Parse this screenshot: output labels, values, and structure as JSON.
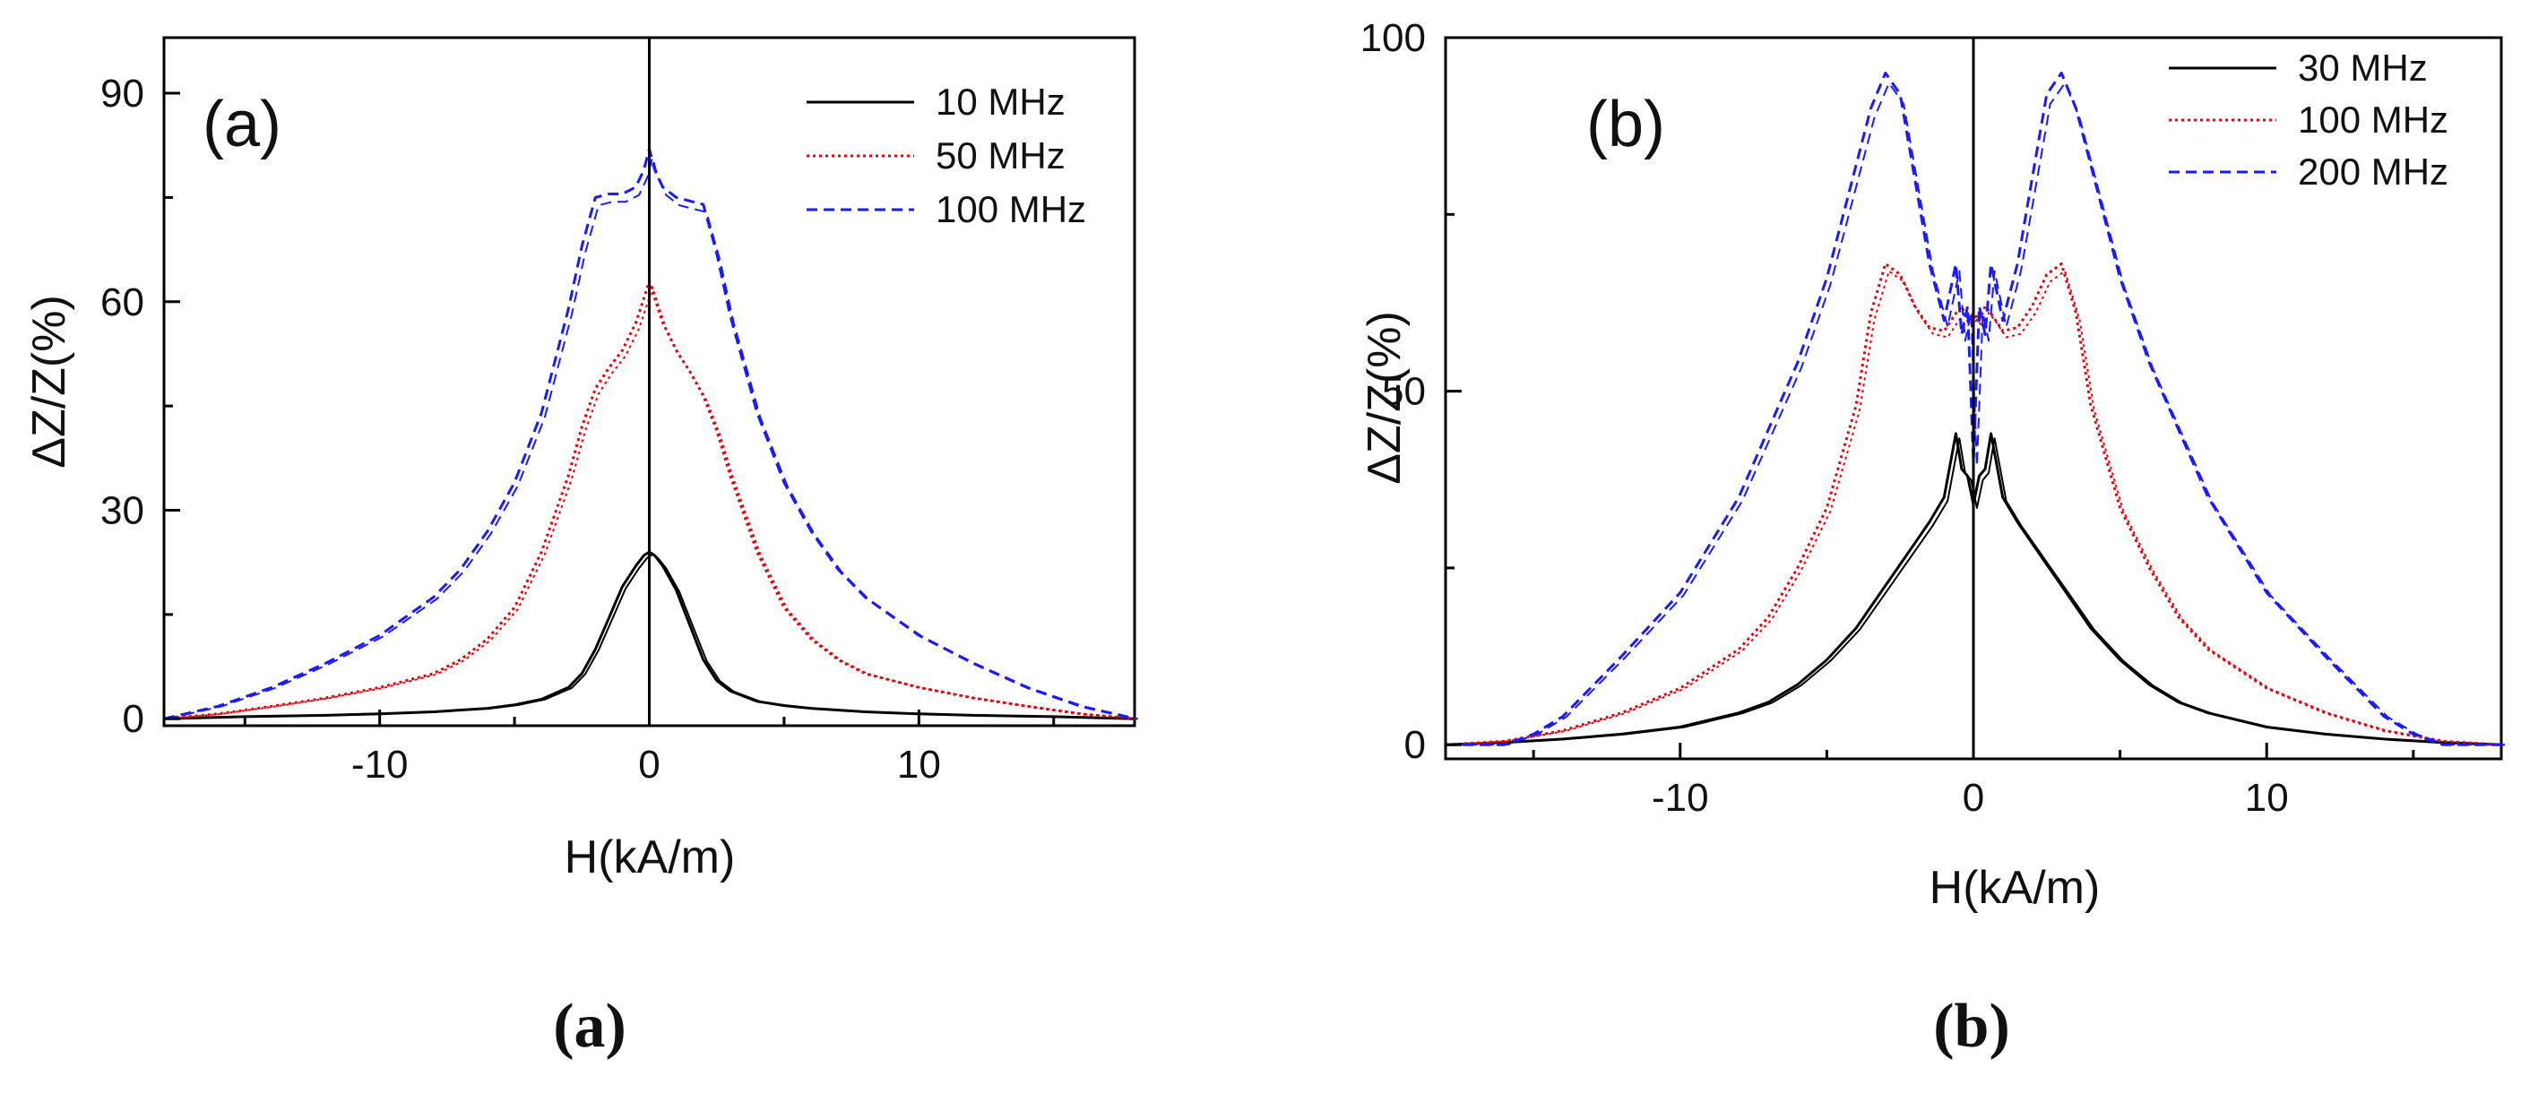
{
  "chart_data": [
    {
      "type": "line",
      "panel_label": "(a)",
      "caption": "(a)",
      "xlabel": "H(kA/m)",
      "ylabel": "ΔZ/Z(%)",
      "xlim": [
        -18,
        18
      ],
      "ylim": [
        -1,
        98
      ],
      "xticks": [
        -10,
        0,
        10
      ],
      "yticks": [
        0,
        30,
        60,
        90
      ],
      "xtick_labels": [
        "-10",
        "0",
        "10"
      ],
      "ytick_labels": [
        "0",
        "30",
        "60",
        "90"
      ],
      "grid": false,
      "legend_position": "top-right",
      "series": [
        {
          "name": "10 MHz",
          "color": "#000000",
          "dash": "solid",
          "x": [
            -18,
            -15,
            -12,
            -10,
            -8,
            -6,
            -5,
            -4,
            -3,
            -2.5,
            -2,
            -1.5,
            -1,
            -0.5,
            -0.2,
            0,
            0.2,
            0.5,
            1,
            1.5,
            2,
            2.5,
            3,
            4,
            5,
            6,
            8,
            10,
            12,
            15,
            18
          ],
          "y": [
            0,
            0.3,
            0.5,
            0.7,
            1.0,
            1.5,
            2.0,
            2.8,
            4.5,
            6.5,
            10,
            14.5,
            19,
            22,
            23.5,
            24,
            23.5,
            22,
            18.5,
            13.5,
            8.5,
            5.5,
            4.0,
            2.5,
            1.9,
            1.5,
            1.0,
            0.7,
            0.5,
            0.3,
            0
          ]
        },
        {
          "name": "50 MHz",
          "color": "#e8000b",
          "dash": "dotted",
          "x": [
            -18,
            -16,
            -14,
            -12,
            -10,
            -8,
            -7,
            -6,
            -5,
            -4,
            -3,
            -2.5,
            -2,
            -1.5,
            -1,
            -0.5,
            -0.2,
            0,
            0.2,
            0.5,
            1,
            1.5,
            2,
            2.5,
            3,
            4,
            5,
            6,
            7,
            8,
            10,
            12,
            14,
            16,
            18
          ],
          "y": [
            0,
            0.7,
            1.8,
            3,
            4.5,
            6.5,
            8.5,
            11.5,
            16,
            24,
            35,
            42,
            47.5,
            50.5,
            53,
            57,
            60.5,
            63,
            60.5,
            57,
            53,
            50,
            46.5,
            41.5,
            35,
            24,
            16,
            11.5,
            8.5,
            6.5,
            4.5,
            3,
            1.8,
            0.7,
            0
          ]
        },
        {
          "name": "100 MHz",
          "color": "#1a1aff",
          "dash": "dashed",
          "x": [
            -18,
            -16,
            -14,
            -12,
            -10,
            -8,
            -7,
            -6,
            -5,
            -4,
            -3,
            -2.5,
            -2,
            -1.5,
            -1,
            -0.5,
            -0.2,
            0,
            0.2,
            0.5,
            1,
            1.5,
            2,
            2.5,
            3,
            4,
            5,
            6,
            7,
            8,
            10,
            12,
            14,
            16,
            18
          ],
          "y": [
            0,
            1.8,
            4.5,
            8,
            12,
            17.5,
            21.5,
            27,
            34,
            44,
            59,
            68,
            75,
            75.5,
            75.5,
            76.5,
            79,
            82,
            79,
            76.5,
            75,
            74.5,
            74,
            67,
            58,
            44,
            34,
            27,
            21.5,
            17.5,
            12,
            8,
            4.5,
            1.8,
            0
          ]
        }
      ]
    },
    {
      "type": "line",
      "panel_label": "(b)",
      "caption": "(b)",
      "xlabel": "H(kA/m)",
      "ylabel": "ΔZ/Z(%)",
      "xlim": [
        -18,
        18
      ],
      "ylim": [
        -2,
        100
      ],
      "xticks": [
        -10,
        0,
        10
      ],
      "yticks": [
        0,
        50,
        100
      ],
      "xtick_labels": [
        "-10",
        "0",
        "10"
      ],
      "ytick_labels": [
        "0",
        "50",
        "100"
      ],
      "grid": false,
      "legend_position": "top-right",
      "series": [
        {
          "name": "30 MHz",
          "color": "#000000",
          "dash": "solid",
          "x": [
            -18,
            -16,
            -14,
            -12,
            -10,
            -8,
            -7,
            -6,
            -5,
            -4,
            -3,
            -2.5,
            -2,
            -1.5,
            -1,
            -0.6,
            -0.4,
            -0.2,
            0,
            0.2,
            0.4,
            0.6,
            1,
            1.5,
            2,
            2.5,
            3,
            4,
            5,
            6,
            7,
            8,
            10,
            12,
            14,
            16,
            18
          ],
          "y": [
            0,
            0.3,
            0.8,
            1.5,
            2.5,
            4.5,
            6,
            8.5,
            12,
            16.5,
            22.5,
            25.5,
            28.5,
            31.5,
            35,
            44,
            39,
            38,
            34,
            38,
            39,
            44,
            35,
            31.5,
            28.5,
            25.5,
            22.5,
            16.5,
            12,
            8.5,
            6,
            4.5,
            2.5,
            1.5,
            0.8,
            0.3,
            0
          ]
        },
        {
          "name": "100 MHz",
          "color": "#e8000b",
          "dash": "dotted",
          "x": [
            -18,
            -16,
            -14,
            -12,
            -10,
            -8,
            -7,
            -6,
            -5,
            -4,
            -3.5,
            -3,
            -2.5,
            -2,
            -1.5,
            -1,
            -0.6,
            -0.4,
            -0.2,
            0,
            0.2,
            0.4,
            0.6,
            1,
            1.5,
            2,
            2.5,
            3,
            3.5,
            4,
            5,
            6,
            7,
            8,
            10,
            12,
            14,
            16,
            18
          ],
          "y": [
            0,
            0.5,
            2,
            4.5,
            8,
            13.5,
            18,
            25,
            33.5,
            48,
            61,
            68,
            66.5,
            62,
            59,
            58.5,
            61,
            62,
            60,
            61,
            60,
            62,
            61,
            58.5,
            59,
            62,
            66.5,
            68,
            61,
            48,
            33.5,
            25,
            18,
            13.5,
            8,
            4.5,
            2,
            0.5,
            0
          ]
        },
        {
          "name": "200 MHz",
          "color": "#1a1aff",
          "dash": "dashed",
          "x": [
            -18,
            -16,
            -15,
            -14,
            -12,
            -10,
            -8,
            -6,
            -5,
            -4.5,
            -4,
            -3.5,
            -3,
            -2.5,
            -2,
            -1.5,
            -1,
            -0.6,
            -0.4,
            -0.2,
            0,
            0.2,
            0.4,
            0.6,
            1,
            1.5,
            2,
            2.5,
            3,
            3.5,
            4,
            4.5,
            5,
            6,
            8,
            10,
            12,
            14,
            15,
            16,
            18
          ],
          "y": [
            0,
            0,
            1.5,
            4,
            12.5,
            21.5,
            35,
            54,
            66,
            74,
            82,
            90,
            95,
            92,
            80,
            68,
            60,
            68,
            58,
            62,
            40,
            62,
            58,
            68,
            60,
            68,
            80,
            92,
            95,
            90,
            82,
            74,
            66,
            54,
            35,
            21.5,
            12.5,
            4,
            1.5,
            0,
            0
          ]
        }
      ]
    }
  ]
}
